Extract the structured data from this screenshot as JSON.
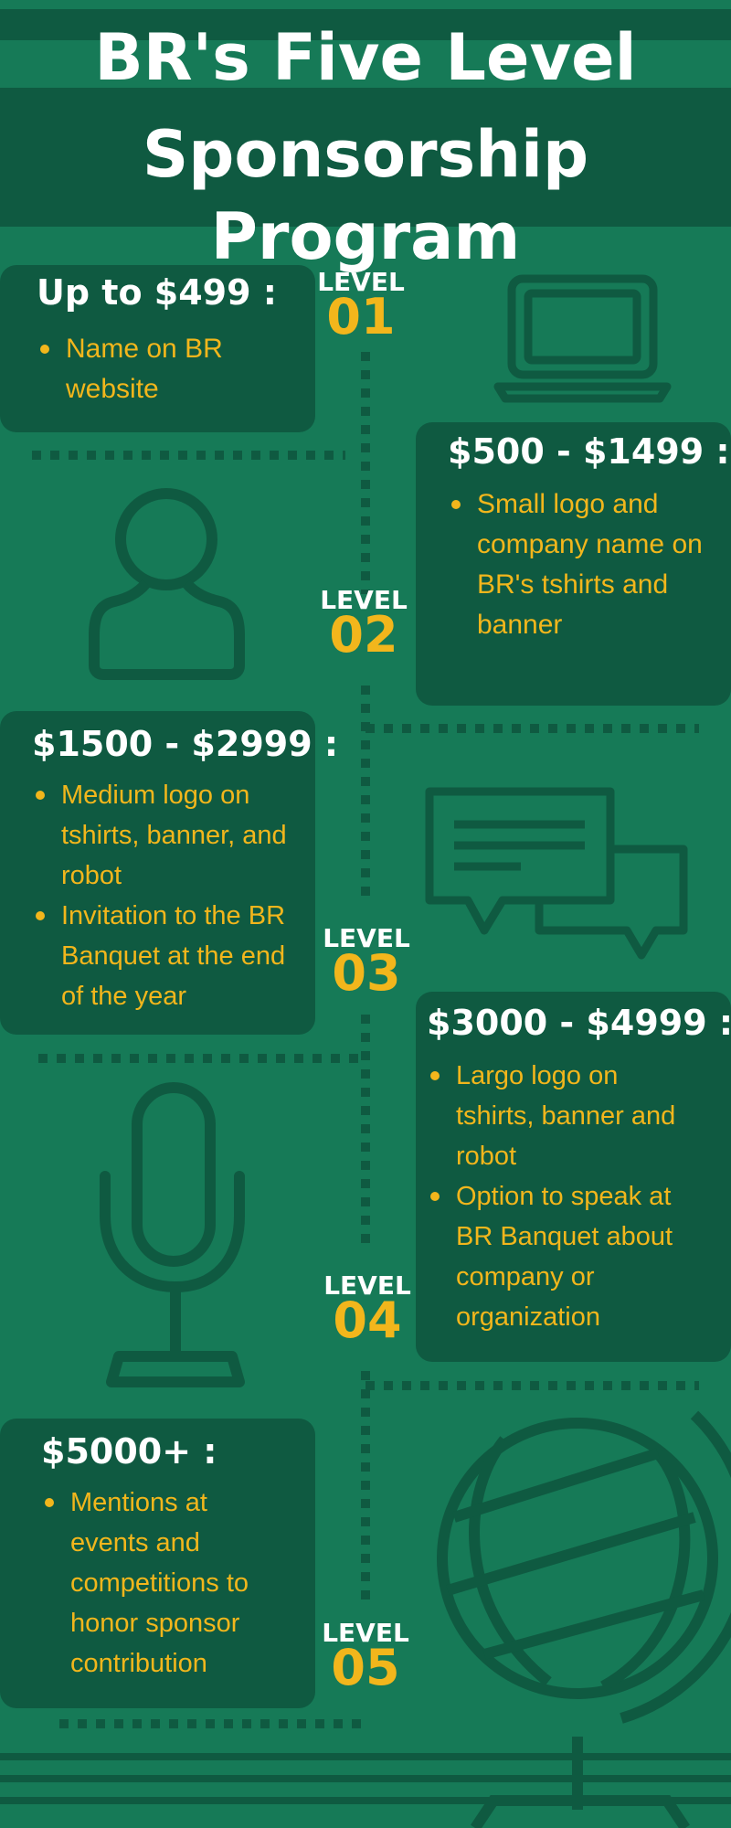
{
  "title": {
    "line1": "BR's Five Level",
    "line2": "Sponsorship Program"
  },
  "levels": [
    {
      "label": "LEVEL",
      "number": "01",
      "price": "Up to $499 :",
      "benefits": [
        "Name on BR website"
      ]
    },
    {
      "label": "LEVEL",
      "number": "02",
      "price": "$500 - $1499 :",
      "benefits": [
        "Small logo and company name on BR's tshirts and banner"
      ]
    },
    {
      "label": "LEVEL",
      "number": "03",
      "price": "$1500 - $2999 :",
      "benefits": [
        "Medium logo on tshirts, banner, and robot",
        "Invitation to the BR Banquet at the end of the year"
      ]
    },
    {
      "label": "LEVEL",
      "number": "04",
      "price": "$3000 - $4999 :",
      "benefits": [
        "Largo logo on tshirts, banner and robot",
        "Option to speak at BR Banquet about  company or organization"
      ]
    },
    {
      "label": "LEVEL",
      "number": "05",
      "price": "$5000+ :",
      "benefits": [
        "Mentions at events and competitions to honor sponsor contribution"
      ]
    }
  ],
  "icons": [
    "laptop-icon",
    "user-icon",
    "chat-bubbles-icon",
    "microphone-icon",
    "globe-icon"
  ],
  "colors": {
    "background": "#167a57",
    "card": "#0f5a41",
    "accent": "#f2b61c",
    "text": "#ffffff"
  }
}
